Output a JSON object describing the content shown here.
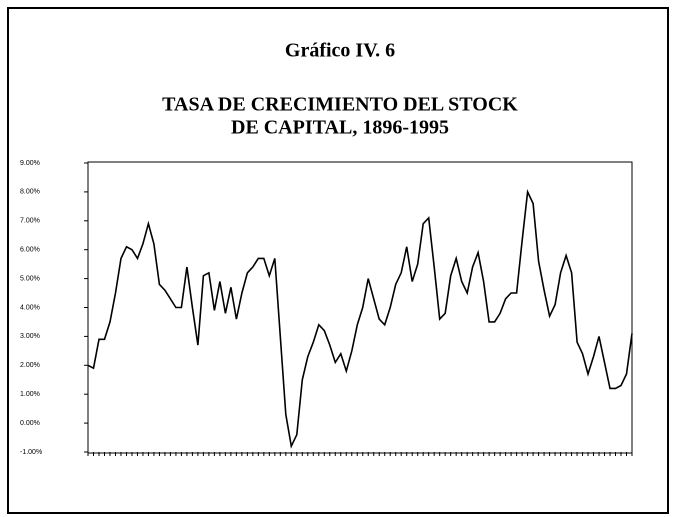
{
  "chart_data": {
    "type": "line",
    "title": "Gráfico IV. 6",
    "subtitle": [
      "TASA DE CRECIMIENTO DEL STOCK",
      "DE CAPITAL, 1896-1995"
    ],
    "categories": [
      null,
      null,
      null,
      null,
      null,
      null,
      null,
      null,
      null,
      null,
      null,
      null,
      null,
      null,
      null,
      null,
      null,
      null,
      null,
      null,
      null,
      null,
      null,
      null,
      null,
      null,
      null,
      null,
      null,
      null,
      null,
      null,
      null,
      null,
      null,
      null,
      null,
      null,
      null,
      null,
      null,
      null,
      null,
      null,
      null,
      null,
      null,
      null,
      null,
      null,
      null,
      null,
      null,
      null,
      null,
      null,
      null,
      null,
      null,
      null,
      null,
      null,
      null,
      null,
      null,
      null,
      null,
      null,
      null,
      null,
      null,
      null,
      null,
      null,
      null,
      null,
      null,
      null,
      null,
      null,
      null,
      null,
      null,
      null,
      null,
      null,
      null,
      null,
      null,
      null,
      null,
      null,
      null,
      null,
      null,
      null,
      null,
      null,
      null,
      null
    ],
    "values": [
      2.0,
      1.9,
      2.9,
      2.9,
      3.5,
      4.5,
      5.7,
      6.1,
      6.0,
      5.7,
      6.2,
      6.9,
      6.2,
      4.8,
      4.6,
      4.3,
      4.0,
      4.0,
      5.4,
      4.0,
      2.7,
      5.1,
      5.2,
      3.9,
      4.9,
      3.8,
      4.7,
      3.6,
      4.5,
      5.2,
      5.4,
      5.7,
      5.7,
      5.1,
      5.7,
      3.0,
      0.3,
      -0.8,
      -0.4,
      1.5,
      2.3,
      2.8,
      3.4,
      3.2,
      2.7,
      2.1,
      2.4,
      1.8,
      2.5,
      3.4,
      4.0,
      5.0,
      4.3,
      3.6,
      3.4,
      4.0,
      4.8,
      5.2,
      6.1,
      4.9,
      5.5,
      6.9,
      7.1,
      5.4,
      3.6,
      3.8,
      5.1,
      5.7,
      4.9,
      4.5,
      5.4,
      5.9,
      4.9,
      3.5,
      3.5,
      3.8,
      4.3,
      4.5,
      4.5,
      6.3,
      8.0,
      7.6,
      5.6,
      4.6,
      3.7,
      4.1,
      5.2,
      5.8,
      5.2,
      2.8,
      2.4,
      1.7,
      2.3,
      3.0,
      2.1,
      1.2,
      1.2,
      1.3,
      1.7,
      3.1
    ],
    "color": "#000000",
    "ylim": [
      -1,
      9
    ],
    "yticks": [
      {
        "value": -1,
        "label": "-1.00%"
      },
      {
        "value": 0,
        "label": "0.00%"
      },
      {
        "value": 1,
        "label": "1.00%"
      },
      {
        "value": 2,
        "label": "2.00%"
      },
      {
        "value": 3,
        "label": "3.00%"
      },
      {
        "value": 4,
        "label": "4.00%"
      },
      {
        "value": 5,
        "label": "5.00%"
      },
      {
        "value": 6,
        "label": "6.00%"
      },
      {
        "value": 7,
        "label": "7.00%"
      },
      {
        "value": 8,
        "label": "8.00%"
      },
      {
        "value": 9,
        "label": "9.00%"
      }
    ],
    "grid": false
  }
}
